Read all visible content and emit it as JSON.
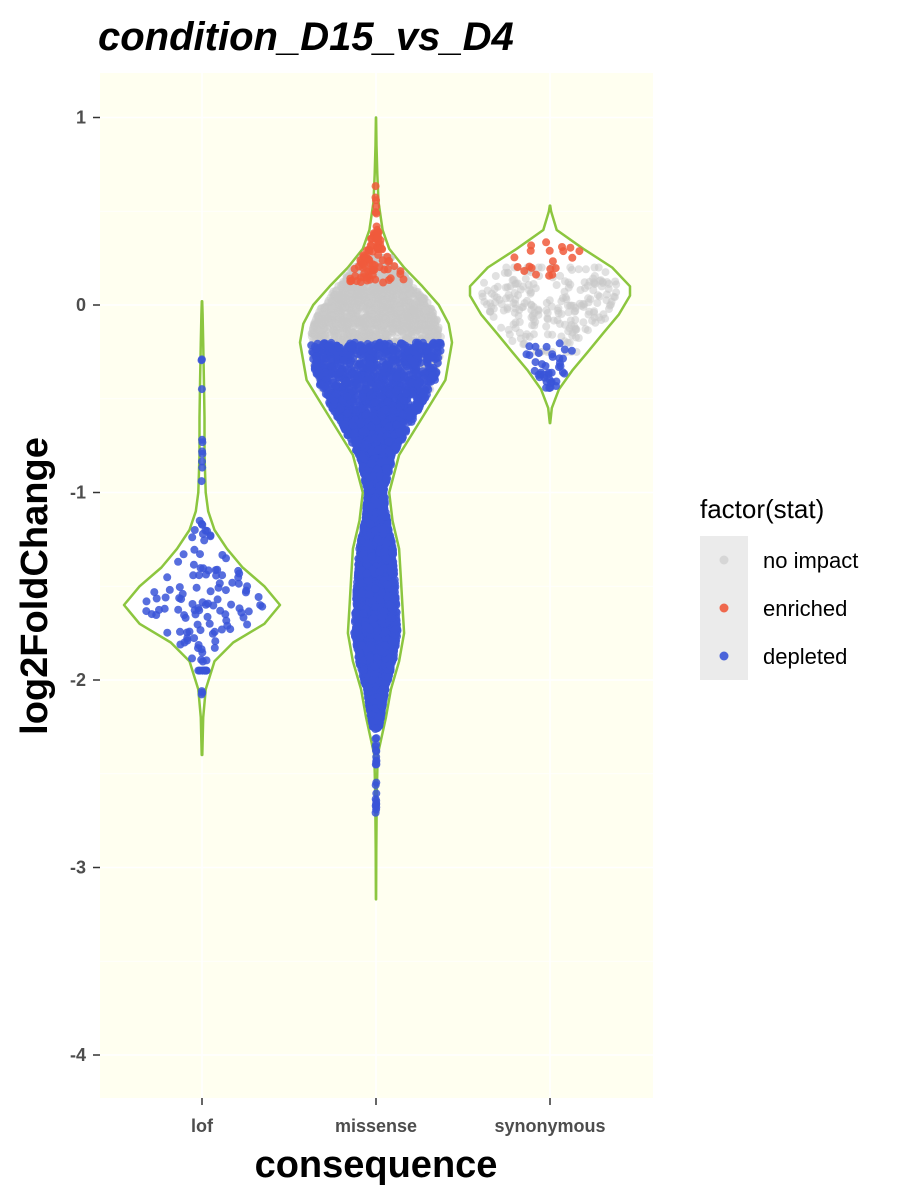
{
  "chart_data": {
    "type": "scatter",
    "subtype": "violin with jittered points",
    "title": "condition_D15_vs_D4",
    "xlabel": "consequence",
    "ylabel": "log2FoldChange",
    "categories": [
      "lof",
      "missense",
      "synonymous"
    ],
    "ylim": [
      -4.25,
      1.25
    ],
    "yticks": [
      1,
      0,
      -1,
      -2,
      -3,
      -4
    ],
    "ytick_labels": [
      "1",
      "0",
      "-1",
      "-2",
      "-3",
      "-4"
    ],
    "grid": true,
    "legend": {
      "title": "factor(stat)",
      "placement": "right",
      "entries": [
        {
          "label": "no impact",
          "color": "#c8c8c8"
        },
        {
          "label": "enriched",
          "color": "#f05a3c"
        },
        {
          "label": "depleted",
          "color": "#3a55d8"
        }
      ]
    },
    "colors": {
      "panel_background": "#fffff0",
      "violin_outline": "#8cc63f",
      "no_impact": "#c8c8c8",
      "enriched": "#f05a3c",
      "depleted": "#3a55d8"
    },
    "violins": [
      {
        "category": "lof",
        "range": [
          -2.4,
          0.02
        ],
        "profile": [
          [
            -2.4,
            0.1
          ],
          [
            -2.2,
            0.4
          ],
          [
            -2.05,
            1.2
          ],
          [
            -1.9,
            4
          ],
          [
            -1.8,
            10
          ],
          [
            -1.7,
            20
          ],
          [
            -1.6,
            25
          ],
          [
            -1.5,
            20
          ],
          [
            -1.4,
            13
          ],
          [
            -1.3,
            8
          ],
          [
            -1.2,
            4
          ],
          [
            -1.1,
            2
          ],
          [
            -1,
            1.2
          ],
          [
            -0.8,
            0.8
          ],
          [
            -0.6,
            0.8
          ],
          [
            -0.4,
            0.6
          ],
          [
            -0.2,
            0.4
          ],
          [
            -0.05,
            0.2
          ],
          [
            0.02,
            0.05
          ]
        ]
      },
      {
        "category": "missense",
        "range": [
          -3.17,
          1.0
        ],
        "profile": [
          [
            -3.17,
            0.05
          ],
          [
            -2.9,
            0.2
          ],
          [
            -2.6,
            0.5
          ],
          [
            -2.4,
            1
          ],
          [
            -2.2,
            6
          ],
          [
            -2.05,
            9
          ],
          [
            -1.9,
            14
          ],
          [
            -1.75,
            17
          ],
          [
            -1.6,
            16
          ],
          [
            -1.45,
            15
          ],
          [
            -1.3,
            14
          ],
          [
            -1.15,
            10
          ],
          [
            -1,
            8
          ],
          [
            -0.8,
            14
          ],
          [
            -0.6,
            28
          ],
          [
            -0.4,
            42
          ],
          [
            -0.2,
            46
          ],
          [
            -0.1,
            44
          ],
          [
            0,
            38
          ],
          [
            0.1,
            28
          ],
          [
            0.2,
            17
          ],
          [
            0.3,
            8
          ],
          [
            0.4,
            4
          ],
          [
            0.55,
            1.5
          ],
          [
            0.7,
            0.8
          ],
          [
            0.85,
            0.3
          ],
          [
            1,
            0.05
          ]
        ]
      },
      {
        "category": "synonymous",
        "range": [
          -0.63,
          0.53
        ],
        "profile": [
          [
            -0.63,
            0.1
          ],
          [
            -0.55,
            0.8
          ],
          [
            -0.45,
            4
          ],
          [
            -0.35,
            10
          ],
          [
            -0.25,
            17
          ],
          [
            -0.15,
            24
          ],
          [
            -0.05,
            31
          ],
          [
            0.05,
            36
          ],
          [
            0.1,
            36
          ],
          [
            0.2,
            28
          ],
          [
            0.3,
            15
          ],
          [
            0.4,
            3
          ],
          [
            0.5,
            0.5
          ],
          [
            0.53,
            0.1
          ]
        ]
      }
    ],
    "point_groups": [
      {
        "category": "lof",
        "stat": "depleted",
        "count": 10,
        "y_range": [
          -0.95,
          -0.25
        ]
      },
      {
        "category": "lof",
        "stat": "depleted",
        "count": 120,
        "y_range": [
          -1.95,
          -1.1
        ],
        "center": -1.6
      },
      {
        "category": "lof",
        "stat": "depleted",
        "count": 3,
        "y_range": [
          -2.15,
          -2.05
        ]
      },
      {
        "category": "missense",
        "stat": "no impact",
        "count": 1800,
        "y_range": [
          -0.45,
          0.25
        ],
        "center": -0.05
      },
      {
        "category": "missense",
        "stat": "enriched",
        "count": 90,
        "y_range": [
          0.12,
          0.4
        ]
      },
      {
        "category": "missense",
        "stat": "enriched",
        "count": 8,
        "y_range": [
          0.4,
          0.66
        ]
      },
      {
        "category": "missense",
        "stat": "depleted",
        "count": 5200,
        "y_range": [
          -2.25,
          -0.2
        ]
      },
      {
        "category": "missense",
        "stat": "depleted",
        "count": 25,
        "y_range": [
          -2.72,
          -2.25
        ]
      },
      {
        "category": "synonymous",
        "stat": "no impact",
        "count": 230,
        "y_range": [
          -0.25,
          0.2
        ],
        "center": 0.0
      },
      {
        "category": "synonymous",
        "stat": "enriched",
        "count": 20,
        "y_range": [
          0.15,
          0.35
        ]
      },
      {
        "category": "synonymous",
        "stat": "depleted",
        "count": 40,
        "y_range": [
          -0.45,
          -0.2
        ]
      }
    ]
  }
}
